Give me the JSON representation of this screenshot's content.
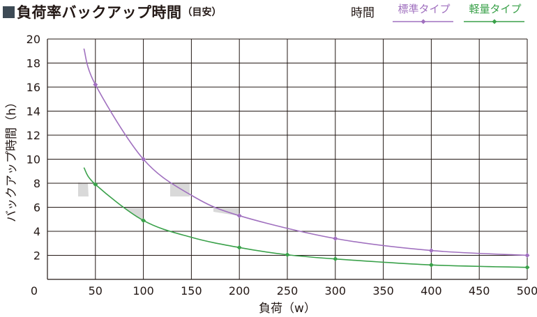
{
  "header": {
    "title": "負荷率バックアップ時間",
    "title_note": "（目安）"
  },
  "colors": {
    "standard": "#a070bf",
    "light": "#3aa14a",
    "grid": "#231815",
    "shade": "#d9d9d9",
    "title_square": "#3d4a55"
  },
  "chart_data": {
    "type": "line",
    "title": "負荷率バックアップ時間（目安）",
    "xlabel": "負荷（w）",
    "ylabel": "バックアップ時間（h）",
    "xlim": [
      0,
      500
    ],
    "ylim": [
      0,
      20
    ],
    "x_ticks": [
      0,
      50,
      100,
      150,
      200,
      250,
      300,
      350,
      400,
      450,
      500
    ],
    "y_ticks": [
      2,
      4,
      6,
      8,
      10,
      12,
      14,
      16,
      18,
      20
    ],
    "grid": true,
    "legend_title": "時間",
    "legend_position": "top-right",
    "series": [
      {
        "name": "標準タイプ",
        "color": "#a070bf",
        "curve": [
          [
            38,
            19.2
          ],
          [
            50,
            16.2
          ],
          [
            100,
            10
          ],
          [
            150,
            7
          ],
          [
            200,
            5.3
          ],
          [
            300,
            3.4
          ],
          [
            400,
            2.4
          ],
          [
            500,
            2
          ]
        ],
        "markers": [
          [
            50,
            16.2
          ],
          [
            100,
            10
          ],
          [
            200,
            5.3
          ],
          [
            300,
            3.4
          ],
          [
            400,
            2.4
          ],
          [
            500,
            2
          ]
        ]
      },
      {
        "name": "軽量タイプ",
        "color": "#3aa14a",
        "curve": [
          [
            38,
            9.3
          ],
          [
            50,
            7.9
          ],
          [
            100,
            4.9
          ],
          [
            150,
            3.5
          ],
          [
            200,
            2.65
          ],
          [
            250,
            2.05
          ],
          [
            300,
            1.7
          ],
          [
            400,
            1.2
          ],
          [
            500,
            1
          ]
        ],
        "markers": [
          [
            50,
            7.9
          ],
          [
            100,
            4.9
          ],
          [
            200,
            2.65
          ],
          [
            250,
            2.05
          ],
          [
            300,
            1.7
          ],
          [
            400,
            1.2
          ],
          [
            500,
            1
          ]
        ]
      }
    ]
  }
}
